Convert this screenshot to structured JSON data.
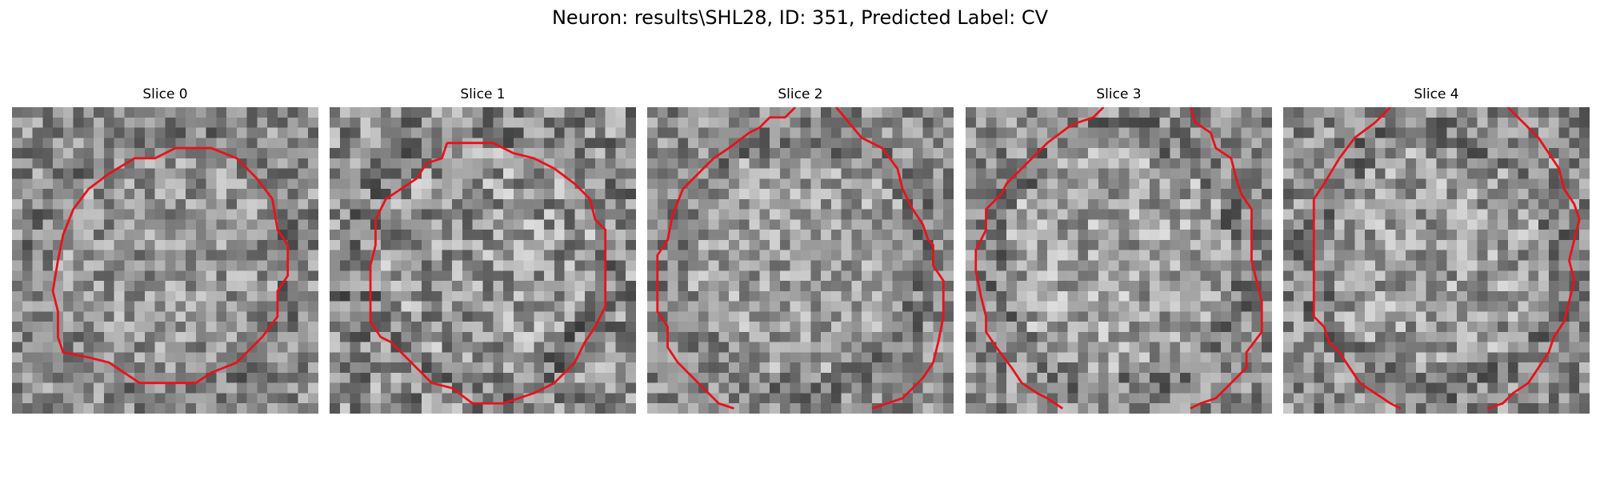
{
  "figure": {
    "title": "Neuron: results\\SHL28, ID: 351, Predicted Label: CV",
    "contour_color": "#e8121a"
  },
  "panels": [
    {
      "title": "Slice 0",
      "seed": 11,
      "contrast": 58,
      "inner": 8
    },
    {
      "title": "Slice 1",
      "seed": 29,
      "contrast": 70,
      "inner": 12
    },
    {
      "title": "Slice 2",
      "seed": 47,
      "contrast": 56,
      "inner": 18
    },
    {
      "title": "Slice 3",
      "seed": 83,
      "contrast": 60,
      "inner": 22
    },
    {
      "title": "Slice 4",
      "seed": 131,
      "contrast": 62,
      "inner": 16
    }
  ]
}
